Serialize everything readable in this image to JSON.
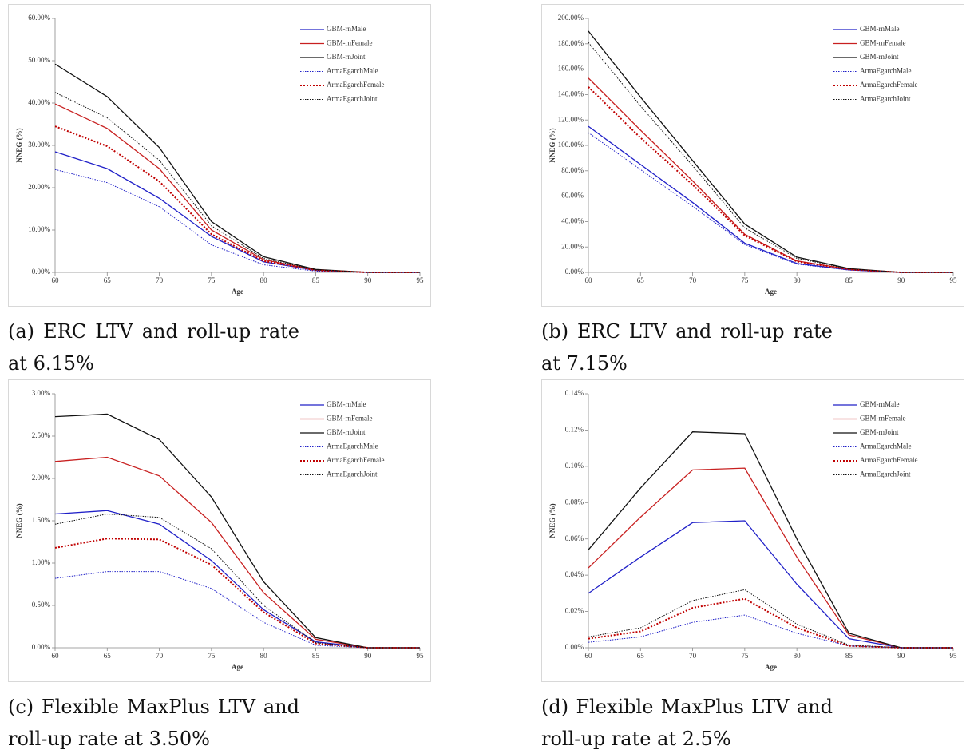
{
  "chart_data": [
    {
      "type": "line",
      "caption": "(a) ERC LTV and roll-up rate at 6.15%",
      "xlabel": "Age",
      "ylabel": "NNEG (%)",
      "x": [
        60,
        65,
        70,
        75,
        80,
        85,
        90,
        95
      ],
      "xlim": [
        60,
        95
      ],
      "xticks": [
        60,
        65,
        70,
        75,
        80,
        85,
        90,
        95
      ],
      "ylim": [
        0,
        60
      ],
      "yticks": [
        {
          "value": 0,
          "label": "0.00%"
        },
        {
          "value": 10,
          "label": "10.00%"
        },
        {
          "value": 20,
          "label": "20.00%"
        },
        {
          "value": 30,
          "label": "30.00%"
        },
        {
          "value": 40,
          "label": "40.00%"
        },
        {
          "value": 50,
          "label": "50.00%"
        },
        {
          "value": 60,
          "label": "60.00%"
        }
      ],
      "series": [
        {
          "name": "GBM-rnMale",
          "color": "#2020c8",
          "style": "solid",
          "values": [
            28.5,
            24.5,
            17.5,
            8.5,
            2.5,
            0.5,
            0,
            0
          ]
        },
        {
          "name": "GBM-rnFemale",
          "color": "#c82020",
          "style": "solid",
          "values": [
            39.8,
            34,
            24.5,
            10,
            3,
            0.6,
            0,
            0
          ]
        },
        {
          "name": "GBM-rnJoint",
          "color": "#111111",
          "style": "solid",
          "values": [
            49.2,
            41.5,
            29.5,
            12,
            3.7,
            0.7,
            0,
            0
          ]
        },
        {
          "name": "ArmaEgarchMale",
          "color": "#2020c8",
          "style": "dotted",
          "values": [
            24.3,
            21.2,
            15.5,
            6.5,
            1.8,
            0.3,
            0,
            0
          ]
        },
        {
          "name": "ArmaEgarchFemale",
          "color": "#c00000",
          "style": "dotted-bold",
          "values": [
            34.5,
            29.8,
            21.5,
            9,
            2.7,
            0.5,
            0,
            0
          ]
        },
        {
          "name": "ArmaEgarchJoint",
          "color": "#111111",
          "style": "dotted",
          "values": [
            42.5,
            36.5,
            26.5,
            11,
            3.3,
            0.6,
            0,
            0
          ]
        }
      ]
    },
    {
      "type": "line",
      "caption": "(b) ERC LTV and roll-up rate at 7.15%",
      "xlabel": "Age",
      "ylabel": "NNEG (%)",
      "x": [
        60,
        65,
        70,
        75,
        80,
        85,
        90,
        95
      ],
      "xlim": [
        60,
        95
      ],
      "xticks": [
        60,
        65,
        70,
        75,
        80,
        85,
        90,
        95
      ],
      "ylim": [
        0,
        200
      ],
      "yticks": [
        {
          "value": 0,
          "label": "0.00%"
        },
        {
          "value": 20,
          "label": "20.00%"
        },
        {
          "value": 40,
          "label": "40.00%"
        },
        {
          "value": 60,
          "label": "60.00%"
        },
        {
          "value": 80,
          "label": "80.00%"
        },
        {
          "value": 100,
          "label": "100.00%"
        },
        {
          "value": 120,
          "label": "120.00%"
        },
        {
          "value": 140,
          "label": "140.00%"
        },
        {
          "value": 160,
          "label": "160.00%"
        },
        {
          "value": 180,
          "label": "180.00%"
        },
        {
          "value": 200,
          "label": "200.00%"
        }
      ],
      "series": [
        {
          "name": "GBM-rnMale",
          "color": "#2020c8",
          "style": "solid",
          "values": [
            115,
            85,
            55,
            23,
            7,
            2,
            0,
            0
          ]
        },
        {
          "name": "GBM-rnFemale",
          "color": "#c82020",
          "style": "solid",
          "values": [
            153,
            112,
            72,
            30,
            9,
            2.5,
            0,
            0
          ]
        },
        {
          "name": "GBM-rnJoint",
          "color": "#111111",
          "style": "solid",
          "values": [
            190,
            138,
            88,
            38,
            12,
            3,
            0,
            0
          ]
        },
        {
          "name": "ArmaEgarchMale",
          "color": "#2020c8",
          "style": "dotted",
          "values": [
            110,
            81,
            52,
            22,
            6.5,
            1.8,
            0,
            0
          ]
        },
        {
          "name": "ArmaEgarchFemale",
          "color": "#c00000",
          "style": "dotted-bold",
          "values": [
            146,
            106,
            69,
            29,
            8.5,
            2.3,
            0,
            0
          ]
        },
        {
          "name": "ArmaEgarchJoint",
          "color": "#111111",
          "style": "dotted",
          "values": [
            181,
            131,
            84,
            35,
            11,
            2.8,
            0,
            0
          ]
        }
      ]
    },
    {
      "type": "line",
      "caption": "(c) Flexible MaxPlus LTV and roll-up rate at 3.50%",
      "xlabel": "Age",
      "ylabel": "NNEG (%)",
      "x": [
        60,
        65,
        70,
        75,
        80,
        85,
        90,
        95
      ],
      "xlim": [
        60,
        95
      ],
      "xticks": [
        60,
        65,
        70,
        75,
        80,
        85,
        90,
        95
      ],
      "ylim": [
        0,
        3
      ],
      "yticks": [
        {
          "value": 0,
          "label": "0.00%"
        },
        {
          "value": 0.5,
          "label": "0.50%"
        },
        {
          "value": 1,
          "label": "1.00%"
        },
        {
          "value": 1.5,
          "label": "1.50%"
        },
        {
          "value": 2,
          "label": "2.00%"
        },
        {
          "value": 2.5,
          "label": "2.50%"
        },
        {
          "value": 3,
          "label": "3.00%"
        }
      ],
      "series": [
        {
          "name": "GBM-rnMale",
          "color": "#2020c8",
          "style": "solid",
          "values": [
            1.58,
            1.62,
            1.46,
            1.03,
            0.45,
            0.07,
            0,
            0
          ]
        },
        {
          "name": "GBM-rnFemale",
          "color": "#c82020",
          "style": "solid",
          "values": [
            2.2,
            2.25,
            2.03,
            1.48,
            0.65,
            0.1,
            0,
            0
          ]
        },
        {
          "name": "GBM-rnJoint",
          "color": "#111111",
          "style": "solid",
          "values": [
            2.73,
            2.76,
            2.46,
            1.78,
            0.78,
            0.12,
            0,
            0
          ]
        },
        {
          "name": "ArmaEgarchMale",
          "color": "#2020c8",
          "style": "dotted",
          "values": [
            0.82,
            0.9,
            0.9,
            0.7,
            0.3,
            0.03,
            0,
            0
          ]
        },
        {
          "name": "ArmaEgarchFemale",
          "color": "#c00000",
          "style": "dotted-bold",
          "values": [
            1.18,
            1.29,
            1.28,
            0.98,
            0.42,
            0.05,
            0,
            0
          ]
        },
        {
          "name": "ArmaEgarchJoint",
          "color": "#111111",
          "style": "dotted",
          "values": [
            1.46,
            1.58,
            1.54,
            1.17,
            0.5,
            0.06,
            0,
            0
          ]
        }
      ]
    },
    {
      "type": "line",
      "caption": "(d) Flexible MaxPlus LTV and roll-up rate at 2.5%",
      "xlabel": "Age",
      "ylabel": "NNEG (%)",
      "x": [
        60,
        65,
        70,
        75,
        80,
        85,
        90,
        95
      ],
      "xlim": [
        60,
        95
      ],
      "xticks": [
        60,
        65,
        70,
        75,
        80,
        85,
        90,
        95
      ],
      "ylim": [
        0,
        0.14
      ],
      "yticks": [
        {
          "value": 0,
          "label": "0.00%"
        },
        {
          "value": 0.02,
          "label": "0.02%"
        },
        {
          "value": 0.04,
          "label": "0.04%"
        },
        {
          "value": 0.06,
          "label": "0.06%"
        },
        {
          "value": 0.08,
          "label": "0.08%"
        },
        {
          "value": 0.1,
          "label": "0.10%"
        },
        {
          "value": 0.12,
          "label": "0.12%"
        },
        {
          "value": 0.14,
          "label": "0.14%"
        }
      ],
      "series": [
        {
          "name": "GBM-rnMale",
          "color": "#2020c8",
          "style": "solid",
          "values": [
            0.03,
            0.05,
            0.069,
            0.07,
            0.035,
            0.005,
            0,
            0
          ]
        },
        {
          "name": "GBM-rnFemale",
          "color": "#c82020",
          "style": "solid",
          "values": [
            0.044,
            0.072,
            0.098,
            0.099,
            0.05,
            0.007,
            0,
            0
          ]
        },
        {
          "name": "GBM-rnJoint",
          "color": "#111111",
          "style": "solid",
          "values": [
            0.054,
            0.088,
            0.119,
            0.118,
            0.06,
            0.008,
            0,
            0
          ]
        },
        {
          "name": "ArmaEgarchMale",
          "color": "#2020c8",
          "style": "dotted",
          "values": [
            0.003,
            0.006,
            0.014,
            0.018,
            0.008,
            0.001,
            0,
            0
          ]
        },
        {
          "name": "ArmaEgarchFemale",
          "color": "#c00000",
          "style": "dotted-bold",
          "values": [
            0.005,
            0.009,
            0.022,
            0.027,
            0.011,
            0.001,
            0,
            0
          ]
        },
        {
          "name": "ArmaEgarchJoint",
          "color": "#111111",
          "style": "dotted",
          "values": [
            0.006,
            0.011,
            0.026,
            0.032,
            0.013,
            0.0015,
            0,
            0
          ]
        }
      ]
    }
  ]
}
